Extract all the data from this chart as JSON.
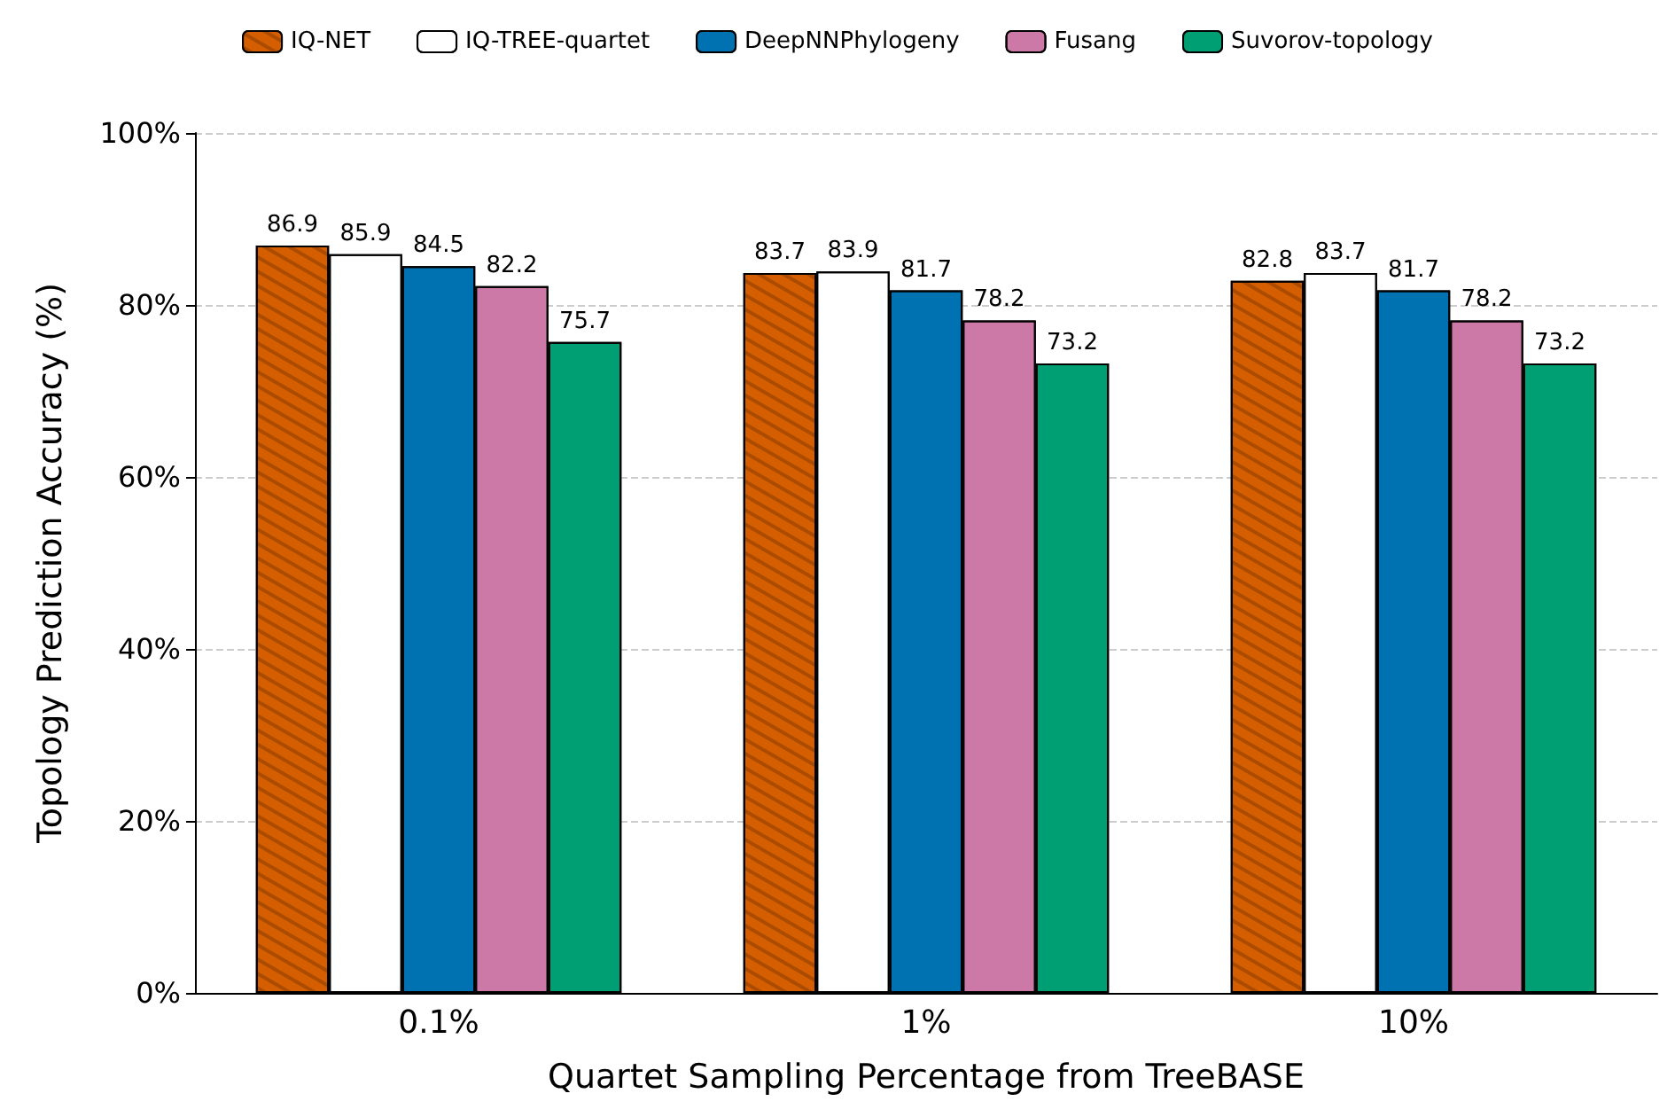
{
  "chart_data": {
    "type": "bar",
    "xlabel": "Quartet Sampling Percentage from TreeBASE",
    "ylabel": "Topology Prediction Accuracy (%)",
    "categories": [
      "0.1%",
      "1%",
      "10%"
    ],
    "series": [
      {
        "name": "IQ-NET",
        "color": "#d55e00",
        "values": [
          86.9,
          83.7,
          82.8
        ]
      },
      {
        "name": "IQ-TREE-quartet",
        "color": "#ffffff",
        "values": [
          85.9,
          83.9,
          83.7
        ]
      },
      {
        "name": "DeepNNPhylogeny",
        "color": "#0072b2",
        "values": [
          84.5,
          81.7,
          81.7
        ]
      },
      {
        "name": "Fusang",
        "color": "#cc79a7",
        "values": [
          82.2,
          78.2,
          78.2
        ]
      },
      {
        "name": "Suvorov-topology",
        "color": "#009e73",
        "values": [
          75.7,
          73.2,
          73.2
        ]
      }
    ],
    "ylim": [
      0,
      100
    ],
    "yticks": [
      {
        "value": 0,
        "label": "0%"
      },
      {
        "value": 20,
        "label": "20%"
      },
      {
        "value": 40,
        "label": "40%"
      },
      {
        "value": 60,
        "label": "60%"
      },
      {
        "value": 80,
        "label": "80%"
      },
      {
        "value": 100,
        "label": "100%"
      }
    ],
    "grid": "y",
    "legend": "top",
    "data_labels": true
  }
}
